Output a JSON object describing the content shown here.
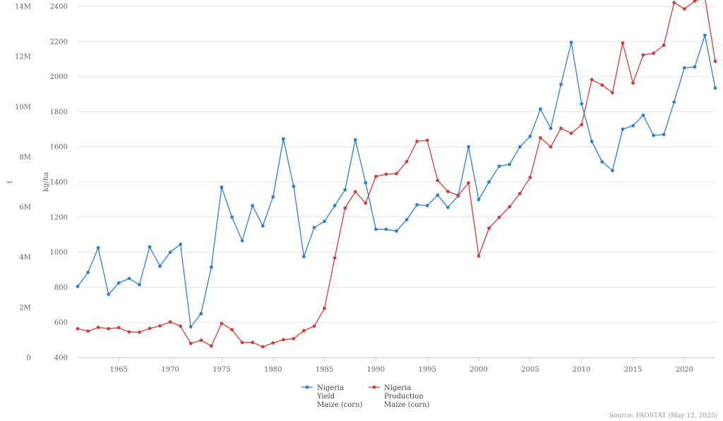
{
  "chart_data": {
    "type": "line",
    "left_axis": {
      "label": "t",
      "min": 0,
      "max": 14000000,
      "ticks": [
        0,
        2000000,
        4000000,
        6000000,
        8000000,
        10000000,
        12000000,
        14000000
      ],
      "tick_labels": [
        "0",
        "2M",
        "4M",
        "6M",
        "8M",
        "10M",
        "12M",
        "14M"
      ]
    },
    "right_axis": {
      "label": "kg/ha",
      "min": 400,
      "max": 2400,
      "ticks": [
        400,
        600,
        800,
        1000,
        1200,
        1400,
        1600,
        1800,
        2000,
        2200,
        2400
      ],
      "tick_labels": [
        "400",
        "600",
        "800",
        "1000",
        "1200",
        "1400",
        "1600",
        "1800",
        "2000",
        "2200",
        "2400"
      ]
    },
    "x_axis": {
      "min": 1961,
      "max": 2023,
      "ticks": [
        1965,
        1970,
        1975,
        1980,
        1985,
        1990,
        1995,
        2000,
        2005,
        2010,
        2015,
        2020
      ],
      "tick_labels": [
        "1965",
        "1970",
        "1975",
        "1980",
        "1985",
        "1990",
        "1995",
        "2000",
        "2005",
        "2010",
        "2015",
        "2020"
      ]
    },
    "x": [
      1961,
      1962,
      1963,
      1964,
      1965,
      1966,
      1967,
      1968,
      1969,
      1970,
      1971,
      1972,
      1973,
      1974,
      1975,
      1976,
      1977,
      1978,
      1979,
      1980,
      1981,
      1982,
      1983,
      1984,
      1985,
      1986,
      1987,
      1988,
      1989,
      1990,
      1991,
      1992,
      1993,
      1994,
      1995,
      1996,
      1997,
      1998,
      1999,
      2000,
      2001,
      2002,
      2003,
      2004,
      2005,
      2006,
      2007,
      2008,
      2009,
      2010,
      2011,
      2012,
      2013,
      2014,
      2015,
      2016,
      2017,
      2018,
      2019,
      2020,
      2021,
      2022,
      2023
    ],
    "series": [
      {
        "legend": [
          "Nigeria",
          "Yield",
          "Maize (corn)"
        ],
        "color": "#2f7ed8",
        "axis": "right",
        "values": [
          805,
          885,
          1025,
          760,
          825,
          850,
          815,
          1030,
          920,
          1000,
          1045,
          575,
          650,
          915,
          1370,
          1200,
          1065,
          1265,
          1150,
          1315,
          1645,
          1375,
          975,
          1140,
          1175,
          1265,
          1355,
          1640,
          1395,
          1130,
          1130,
          1120,
          1185,
          1270,
          1265,
          1325,
          1255,
          1320,
          1600,
          1300,
          1400,
          1490,
          1500,
          1600,
          1660,
          1815,
          1705,
          1955,
          2195,
          1845,
          1630,
          1515,
          1465,
          1700,
          1720,
          1780,
          1665,
          1670,
          1855,
          2050,
          2055,
          2235,
          1935
        ]
      },
      {
        "legend": [
          "Nigeria",
          "Production",
          "Maize (corn)"
        ],
        "color": "#d13d3d",
        "axis": "left",
        "values": [
          1150000,
          1050000,
          1200000,
          1150000,
          1190000,
          1020000,
          1010000,
          1160000,
          1260000,
          1420000,
          1250000,
          560000,
          690000,
          460000,
          1360000,
          1110000,
          600000,
          600000,
          430000,
          580000,
          710000,
          750000,
          1070000,
          1250000,
          1960000,
          3970000,
          5960000,
          6610000,
          6160000,
          7220000,
          7310000,
          7330000,
          7810000,
          8620000,
          8660000,
          7060000,
          6620000,
          6470000,
          6960000,
          4050000,
          5160000,
          5590000,
          6010000,
          6540000,
          7180000,
          8760000,
          8400000,
          9140000,
          8940000,
          9280000,
          11080000,
          10860000,
          10560000,
          12540000,
          10940000,
          12060000,
          12130000,
          12450000,
          14150000,
          13900000,
          14210000,
          14350000,
          11810000
        ]
      }
    ],
    "source": "Source: FAOSTAT (May 12, 2025)",
    "grid": true,
    "legend_position": "bottom"
  }
}
